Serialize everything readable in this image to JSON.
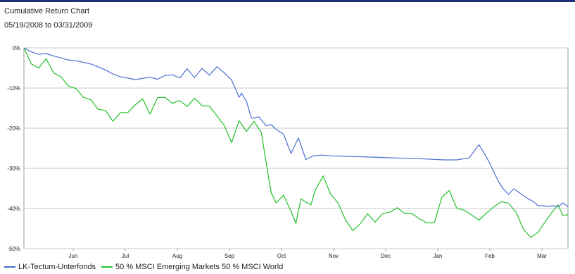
{
  "chart_data": {
    "type": "line",
    "title": "Cumulative Return Chart",
    "subtitle": "05/19/2008 to 03/31/2009",
    "x_tick_labels": [
      "Jun",
      "Jul",
      "Aug",
      "Sep",
      "Oct",
      "Nov",
      "Dec",
      "Jan",
      "Feb",
      "Mar"
    ],
    "y_tick_labels": [
      "0%",
      "-10%",
      "-20%",
      "-30%",
      "-40%",
      "-50%"
    ],
    "ylim": [
      -50,
      0
    ],
    "x_unit": "trading days",
    "xlim": [
      0,
      220
    ],
    "grid": true,
    "legend_position": "bottom-left",
    "series": [
      {
        "name": "LK-Tectum-Unterfonds",
        "color": "#4a6fd0",
        "x": [
          0,
          3,
          6,
          9,
          12,
          15,
          18,
          21,
          24,
          27,
          30,
          33,
          36,
          39,
          42,
          45,
          48,
          51,
          54,
          57,
          60,
          63,
          66,
          69,
          72,
          75,
          78,
          81,
          84,
          87,
          88,
          90,
          92,
          95,
          98,
          100,
          102,
          105,
          108,
          111,
          114,
          117,
          120,
          125,
          130,
          140,
          150,
          160,
          170,
          175,
          180,
          184,
          186,
          188,
          190,
          192,
          194,
          196,
          198,
          200,
          202,
          204,
          206,
          208,
          210,
          212,
          214,
          216,
          218,
          220
        ],
        "y": [
          0,
          -1,
          -1.6,
          -1.4,
          -2,
          -2.5,
          -3,
          -3.2,
          -3.6,
          -4,
          -4.7,
          -5.5,
          -6.5,
          -7.2,
          -7.5,
          -7.9,
          -7.6,
          -7.3,
          -7.8,
          -6.9,
          -6.7,
          -7.5,
          -5.2,
          -7.4,
          -5.1,
          -6.8,
          -4.7,
          -6.2,
          -8,
          -12.3,
          -11.3,
          -13.3,
          -17.5,
          -17.2,
          -19.4,
          -19.1,
          -20.3,
          -21.5,
          -26.3,
          -22.4,
          -27.8,
          -26.9,
          -26.7,
          -26.9,
          -27,
          -27.2,
          -27.4,
          -27.6,
          -27.9,
          -27.9,
          -27.4,
          -24.1,
          -26.1,
          -28.3,
          -30.9,
          -33.4,
          -35.2,
          -36.5,
          -35.1,
          -35.9,
          -36.8,
          -37.6,
          -38.3,
          -39.3,
          -39.3,
          -39.5,
          -39.3,
          -39.6,
          -38.6,
          -39.6
        ]
      },
      {
        "name": "50 % MSCI Emerging Markets 50 % MSCI World",
        "color": "#22c12a",
        "x": [
          0,
          3,
          6,
          9,
          12,
          15,
          18,
          21,
          24,
          27,
          30,
          33,
          36,
          39,
          42,
          45,
          48,
          51,
          54,
          57,
          60,
          63,
          66,
          69,
          72,
          75,
          78,
          81,
          84,
          87,
          90,
          93,
          96,
          99,
          100,
          102,
          105,
          108,
          110,
          112,
          114,
          116,
          118,
          121,
          124,
          127,
          130,
          133,
          136,
          139,
          142,
          145,
          148,
          151,
          154,
          157,
          160,
          163,
          166,
          169,
          172,
          175,
          178,
          181,
          184,
          187,
          190,
          193,
          196,
          199,
          202,
          205,
          208,
          211,
          214,
          216,
          218,
          220
        ],
        "y": [
          0,
          -4,
          -5,
          -2.7,
          -6.2,
          -7.2,
          -9.5,
          -10.1,
          -12.3,
          -12.9,
          -15.3,
          -15.6,
          -18.3,
          -16.1,
          -16.1,
          -14.2,
          -12.7,
          -16.5,
          -12.4,
          -12.3,
          -13.8,
          -13.1,
          -14.6,
          -12.5,
          -14.4,
          -14.5,
          -16.9,
          -19.3,
          -23.6,
          -18.1,
          -20.8,
          -18.3,
          -21.1,
          -32.6,
          -36.1,
          -38.6,
          -36.7,
          -40.7,
          -43.7,
          -37.6,
          -38.4,
          -39.1,
          -35.2,
          -31.9,
          -36.4,
          -38.6,
          -42.8,
          -45.5,
          -43.8,
          -41.3,
          -43.4,
          -41.3,
          -40.9,
          -39.8,
          -41.3,
          -41.3,
          -42.6,
          -43.6,
          -43.5,
          -37.2,
          -35.5,
          -39.9,
          -40.4,
          -41.6,
          -42.9,
          -41.2,
          -39.6,
          -38.3,
          -38.7,
          -40.9,
          -45.2,
          -47.2,
          -45.9,
          -43.1,
          -40.6,
          -39.1,
          -41.8,
          -41.5
        ]
      }
    ]
  }
}
